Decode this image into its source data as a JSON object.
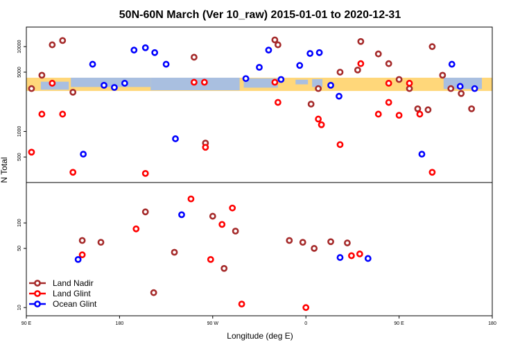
{
  "chart_data": {
    "type": "scatter",
    "title": "50N-60N March (Ver 10_raw)   2015-01-01 to 2020-12-31",
    "xlabel": "Longitude (deg E)",
    "ylabel": "N Total",
    "x_ticks": [
      {
        "value": 90,
        "label": "90 E"
      },
      {
        "value": 180,
        "label": "180"
      },
      {
        "value": 270,
        "label": "90 W"
      },
      {
        "value": 360,
        "label": "0"
      },
      {
        "value": 450,
        "label": "90 E"
      },
      {
        "value": 540,
        "label": "180"
      }
    ],
    "xlim": [
      90,
      540
    ],
    "top_panel": {
      "yscale": "log",
      "ylim": [
        250,
        17000
      ],
      "y_ticks": [
        500,
        1000,
        5000,
        10000
      ],
      "map_band": {
        "land_color": "#FFD77A",
        "ocean_color": "#A9BFE0",
        "y_range": [
          3000,
          4300
        ]
      }
    },
    "bottom_panel": {
      "yscale": "log",
      "ylim": [
        8,
        300
      ],
      "y_ticks": [
        10,
        50,
        100
      ]
    },
    "series": [
      {
        "name": "Land Nadir",
        "color": "#A52A2A",
        "top": [
          [
            95,
            3200
          ],
          [
            105,
            4600
          ],
          [
            115,
            10500
          ],
          [
            125,
            11800
          ],
          [
            135,
            2900
          ],
          [
            252,
            7500
          ],
          [
            263,
            730
          ],
          [
            330,
            12000
          ],
          [
            333,
            10500
          ],
          [
            365,
            2100
          ],
          [
            372,
            3200
          ],
          [
            393,
            5000
          ],
          [
            410,
            5300
          ],
          [
            413,
            11500
          ],
          [
            430,
            8200
          ],
          [
            440,
            6300
          ],
          [
            450,
            4100
          ],
          [
            460,
            3200
          ],
          [
            468,
            1850
          ],
          [
            478,
            1800
          ],
          [
            482,
            10000
          ],
          [
            492,
            4600
          ],
          [
            500,
            3200
          ],
          [
            510,
            2800
          ],
          [
            520,
            1850
          ]
        ],
        "bottom": [
          [
            144,
            62
          ],
          [
            162,
            59
          ],
          [
            205,
            135
          ],
          [
            213,
            15
          ],
          [
            233,
            45
          ],
          [
            270,
            120
          ],
          [
            281,
            29
          ],
          [
            292,
            80
          ],
          [
            344,
            62
          ],
          [
            357,
            59
          ],
          [
            368,
            50
          ],
          [
            384,
            60
          ],
          [
            400,
            58
          ]
        ]
      },
      {
        "name": "Land Glint",
        "color": "#FF0000",
        "top": [
          [
            95,
            570
          ],
          [
            105,
            1600
          ],
          [
            115,
            3700
          ],
          [
            125,
            1600
          ],
          [
            135,
            330
          ],
          [
            205,
            320
          ],
          [
            252,
            3800
          ],
          [
            262,
            3800
          ],
          [
            263,
            650
          ],
          [
            330,
            3800
          ],
          [
            333,
            2200
          ],
          [
            372,
            1400
          ],
          [
            375,
            1200
          ],
          [
            393,
            700
          ],
          [
            413,
            6300
          ],
          [
            430,
            1600
          ],
          [
            440,
            2200
          ],
          [
            440,
            3700
          ],
          [
            450,
            1550
          ],
          [
            460,
            3700
          ],
          [
            470,
            1600
          ],
          [
            482,
            330
          ]
        ],
        "bottom": [
          [
            144,
            42
          ],
          [
            196,
            85
          ],
          [
            249,
            192
          ],
          [
            268,
            37
          ],
          [
            279,
            96
          ],
          [
            289,
            150
          ],
          [
            298,
            11
          ],
          [
            360,
            10
          ],
          [
            404,
            41
          ],
          [
            412,
            43
          ]
        ]
      },
      {
        "name": "Ocean Glint",
        "color": "#0000FF",
        "top": [
          [
            145,
            540
          ],
          [
            154,
            6200
          ],
          [
            165,
            3500
          ],
          [
            175,
            3300
          ],
          [
            185,
            3700
          ],
          [
            194,
            9100
          ],
          [
            205,
            9700
          ],
          [
            214,
            8500
          ],
          [
            225,
            6200
          ],
          [
            234,
            820
          ],
          [
            302,
            4200
          ],
          [
            315,
            5700
          ],
          [
            324,
            9100
          ],
          [
            336,
            4100
          ],
          [
            354,
            6000
          ],
          [
            364,
            8300
          ],
          [
            373,
            8500
          ],
          [
            384,
            3500
          ],
          [
            392,
            2600
          ],
          [
            472,
            540
          ],
          [
            501,
            6200
          ],
          [
            509,
            3400
          ],
          [
            523,
            3200
          ]
        ],
        "bottom": [
          [
            140,
            37
          ],
          [
            240,
            125
          ],
          [
            393,
            39
          ],
          [
            420,
            38
          ]
        ]
      }
    ],
    "legend": {
      "position": "bottom-left",
      "entries": [
        "Land Nadir",
        "Land Glint",
        "Ocean Glint"
      ]
    }
  }
}
